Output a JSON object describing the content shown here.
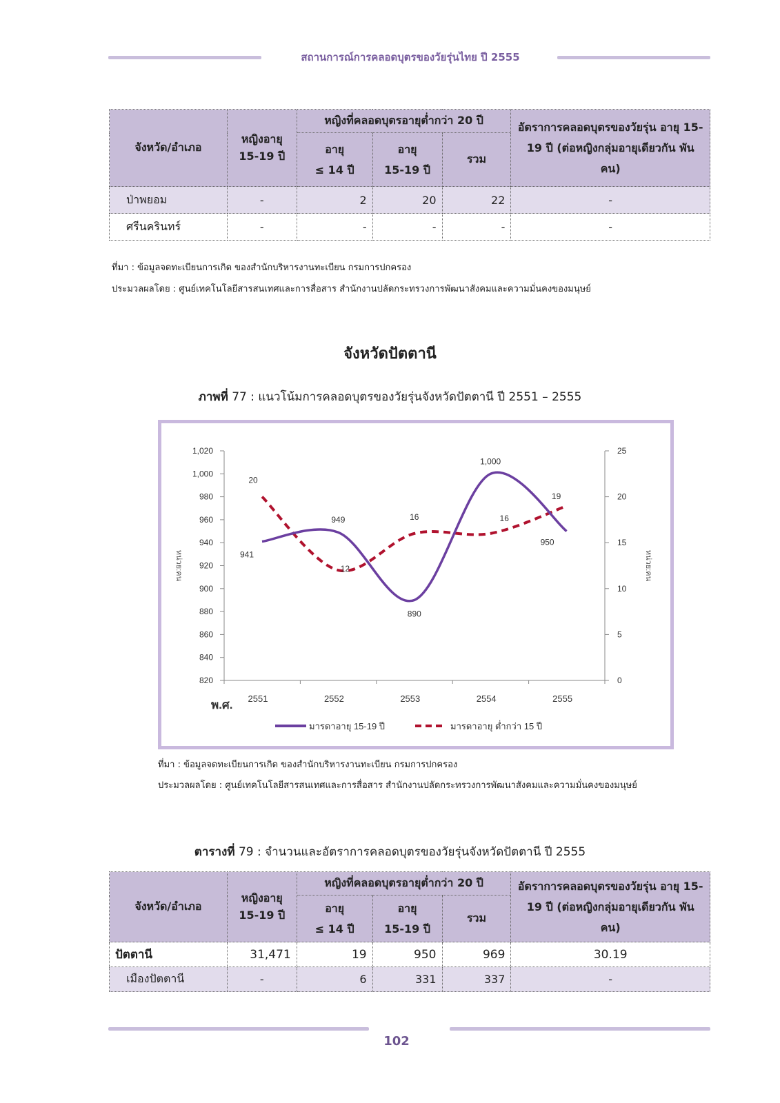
{
  "header": {
    "title": "สถานการณ์การคลอดบุตรของวัยรุ่นไทย ปี 2555"
  },
  "table_top": {
    "headers": {
      "province": "จังหวัด/อำเภอ",
      "women": "หญิงอายุ 15-19 ปี",
      "births_group": "หญิงที่คลอดบุตรอายุต่ำกว่า 20 ปี",
      "age_le14_a": "อายุ",
      "age_le14_b": "≤ 14 ปี",
      "age_1519_a": "อายุ",
      "age_1519_b": "15-19 ปี",
      "total": "รวม",
      "rate": "อัตราการคลอดบุตรของวัยรุ่น อายุ 15-19 ปี (ต่อหญิงกลุ่มอายุเดียวกัน พันคน)"
    },
    "rows": [
      {
        "name": "ป่าพยอม",
        "women": "-",
        "le14": "2",
        "a1519": "20",
        "total": "22",
        "rate": "-"
      },
      {
        "name": "ศรีนครินทร์",
        "women": "-",
        "le14": "-",
        "a1519": "-",
        "total": "-",
        "rate": "-"
      }
    ]
  },
  "notes_top": {
    "source": "ที่มา : ข้อมูลจดทะเบียนการเกิด ของสำนักบริหารงานทะเบียน กรมการปกครอง",
    "processed": "ประมวลผลโดย : ศูนย์เทคโนโลยีสารสนเทศและการสื่อสาร สำนักงานปลัดกระทรวงการพัฒนาสังคมและความมั่นคงของมนุษย์"
  },
  "section": {
    "title": "จังหวัดปัตตานี"
  },
  "figure": {
    "label": "ภาพที่",
    "number": "77",
    "caption": ": แนวโน้มการคลอดบุตรของวัยรุ่นจังหวัดปัตตานี ปี 2551 – 2555"
  },
  "chart_data": {
    "type": "line",
    "categories": [
      "2551",
      "2552",
      "2553",
      "2554",
      "2555"
    ],
    "x_axis_prefix": "พ.ศ.",
    "series": [
      {
        "name": "มารดาอายุ 15-19 ปี",
        "axis": "left",
        "color": "#6b3fa0",
        "style": "solid",
        "values": [
          941,
          949,
          890,
          1000,
          950
        ]
      },
      {
        "name": "มารดาอายุ ต่ำกว่า 15 ปี",
        "axis": "right",
        "color": "#b0122e",
        "style": "dashed",
        "values": [
          20,
          12,
          16,
          16,
          19
        ]
      }
    ],
    "left_axis": {
      "label": "หน่วย:คน",
      "ylim": [
        820,
        1020
      ],
      "ticks": [
        "820",
        "840",
        "860",
        "880",
        "900",
        "920",
        "940",
        "960",
        "980",
        "1,000",
        "1,020"
      ]
    },
    "right_axis": {
      "label": "หน่วย:คน",
      "ylim": [
        0,
        25
      ],
      "ticks": [
        "0",
        "5",
        "10",
        "15",
        "20",
        "25"
      ]
    },
    "value_labels_left": [
      "941",
      "949",
      "890",
      "1,000",
      "950"
    ],
    "value_labels_right": [
      "20",
      "12",
      "16",
      "16",
      "19"
    ],
    "legend_position": "bottom",
    "grid": false
  },
  "notes_chart": {
    "source": "ที่มา : ข้อมูลจดทะเบียนการเกิด ของสำนักบริหารงานทะเบียน กรมการปกครอง",
    "processed": "ประมวลผลโดย : ศูนย์เทคโนโลยีสารสนเทศและการสื่อสาร สำนักงานปลัดกระทรวงการพัฒนาสังคมและความมั่นคงของมนุษย์"
  },
  "table_caption": {
    "label": "ตารางที่",
    "number": "79",
    "caption": ": จำนวนและอัตราการคลอดบุตรของวัยรุ่นจังหวัดปัตตานี ปี 2555"
  },
  "table_bottom": {
    "rows": [
      {
        "name": "ปัตตานี",
        "women": "31,471",
        "le14": "19",
        "a1519": "950",
        "total": "969",
        "rate": "30.19"
      },
      {
        "name": "เมืองปัตตานี",
        "women": "-",
        "le14": "6",
        "a1519": "331",
        "total": "337",
        "rate": "-"
      }
    ]
  },
  "footer": {
    "page_number": "102"
  },
  "colors": {
    "accent": "#c7bcd8",
    "purple_line": "#6b3fa0",
    "red_dash": "#b0122e",
    "frame": "#c9b9de"
  }
}
